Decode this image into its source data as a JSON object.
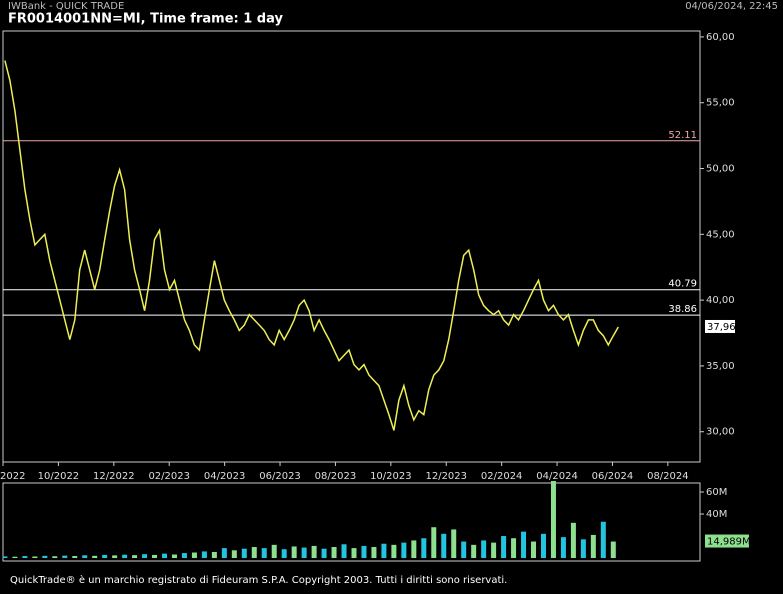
{
  "app_title": "IWBank - QUICK TRADE",
  "timestamp": "04/06/2024, 22:45",
  "footer": "QuickTrade® è un marchio registrato di Fideuram S.P.A. Copyright 2003. Tutti i diritti sono riservati.",
  "chart_data": [
    {
      "type": "line",
      "title": "FR0014001NN=MI, Time frame: 1 day",
      "color": "#eeee55",
      "x": [
        0.07,
        0.25,
        0.43,
        0.61,
        0.79,
        0.97,
        1.15,
        1.33,
        1.51,
        1.69,
        1.87,
        2.05,
        2.23,
        2.41,
        2.59,
        2.77,
        2.95,
        3.13,
        3.31,
        3.49,
        3.67,
        3.85,
        4.03,
        4.21,
        4.39,
        4.57,
        4.75,
        4.93,
        5.11,
        5.29,
        5.47,
        5.65,
        5.83,
        6.01,
        6.19,
        6.37,
        6.55,
        6.73,
        6.91,
        7.09,
        7.27,
        7.45,
        7.63,
        7.81,
        7.99,
        8.17,
        8.35,
        8.53,
        8.71,
        8.89,
        9.07,
        9.25,
        9.43,
        9.61,
        9.79,
        9.97,
        10.15,
        10.33,
        10.51,
        10.69,
        10.87,
        11.05,
        11.23,
        11.41,
        11.59,
        11.77,
        11.95,
        12.13,
        12.31,
        12.49,
        12.67,
        12.85,
        13.03,
        13.21,
        13.39,
        13.57,
        13.75,
        13.93,
        14.11,
        14.29,
        14.47,
        14.65,
        14.83,
        15.01,
        15.19,
        15.37,
        15.55,
        15.73,
        15.91,
        16.09,
        16.27,
        16.45,
        16.63,
        16.81,
        16.99,
        17.17,
        17.35,
        17.53,
        17.71,
        17.89,
        18.07,
        18.25,
        18.43,
        18.61,
        18.79,
        18.97,
        19.15,
        19.33,
        19.51,
        19.69,
        19.87,
        20.05,
        20.23,
        20.41,
        20.59,
        20.77,
        20.95,
        21.13,
        21.31,
        21.49,
        21.67,
        21.85,
        22.03,
        22.21
      ],
      "values": [
        58.2,
        56.7,
        54.4,
        51.4,
        48.4,
        46.1,
        44.2,
        44.6,
        45.0,
        43.0,
        41.5,
        40.0,
        38.5,
        37.0,
        38.5,
        42.3,
        43.8,
        42.3,
        40.8,
        42.3,
        44.6,
        46.8,
        48.7,
        49.9,
        48.4,
        44.6,
        42.3,
        40.8,
        39.2,
        41.5,
        44.6,
        45.3,
        42.3,
        40.8,
        41.5,
        40.0,
        38.5,
        37.7,
        36.6,
        36.2,
        38.5,
        40.8,
        43.0,
        41.5,
        40.0,
        39.2,
        38.5,
        37.7,
        38.1,
        38.9,
        38.5,
        38.1,
        37.7,
        37.0,
        36.6,
        37.7,
        37.0,
        37.7,
        38.5,
        39.6,
        40.0,
        39.2,
        37.7,
        38.5,
        37.7,
        37.0,
        36.2,
        35.4,
        35.8,
        36.2,
        35.1,
        34.7,
        35.1,
        34.3,
        33.9,
        33.5,
        32.4,
        31.3,
        30.1,
        32.4,
        33.5,
        32.0,
        30.9,
        31.6,
        31.3,
        33.2,
        34.3,
        34.7,
        35.4,
        37.0,
        39.2,
        41.5,
        43.4,
        43.8,
        42.3,
        40.4,
        39.6,
        39.2,
        38.9,
        39.2,
        38.5,
        38.1,
        38.9,
        38.5,
        39.2,
        40.0,
        40.8,
        41.5,
        40.0,
        39.2,
        39.6,
        38.9,
        38.5,
        38.9,
        37.7,
        36.6,
        37.7,
        38.5,
        38.5,
        37.7,
        37.3,
        36.6,
        37.3,
        37.96
      ],
      "xlim": [
        0,
        25.16
      ],
      "xticks": [
        {
          "value": 0,
          "label": "2022"
        },
        {
          "value": 2,
          "label": "10/2022"
        },
        {
          "value": 4,
          "label": "12/2022"
        },
        {
          "value": 6,
          "label": "02/2023"
        },
        {
          "value": 8,
          "label": "04/2023"
        },
        {
          "value": 10,
          "label": "06/2023"
        },
        {
          "value": 12,
          "label": "08/2023"
        },
        {
          "value": 14,
          "label": "10/2023"
        },
        {
          "value": 16,
          "label": "12/2023"
        },
        {
          "value": 18,
          "label": "02/2024"
        },
        {
          "value": 20,
          "label": "04/2024"
        },
        {
          "value": 22,
          "label": "06/2024"
        },
        {
          "value": 24,
          "label": "08/2024"
        }
      ],
      "ylim": [
        27.7,
        60.45
      ],
      "yticks": [
        {
          "value": 30,
          "label": "30,00"
        },
        {
          "value": 35,
          "label": "35,00"
        },
        {
          "value": 40,
          "label": "40,00"
        },
        {
          "value": 45,
          "label": "45,00"
        },
        {
          "value": 50,
          "label": "50,00"
        },
        {
          "value": 55,
          "label": "55,00"
        },
        {
          "value": 60,
          "label": "60,00"
        }
      ],
      "levels": [
        {
          "value": 52.11,
          "label": "52.11",
          "color": "#f0a8a8"
        },
        {
          "value": 40.79,
          "label": "40.79",
          "color": "#ffffff"
        },
        {
          "value": 38.86,
          "label": "38.86",
          "color": "#ffffff"
        }
      ],
      "last_value": {
        "value": 37.96,
        "label": "37,96"
      }
    },
    {
      "type": "bar",
      "x": [
        0.07,
        0.43,
        0.79,
        1.15,
        1.51,
        1.87,
        2.23,
        2.59,
        2.95,
        3.31,
        3.67,
        4.03,
        4.39,
        4.75,
        5.11,
        5.47,
        5.83,
        6.19,
        6.55,
        6.91,
        7.27,
        7.63,
        7.99,
        8.35,
        8.71,
        9.07,
        9.43,
        9.79,
        10.15,
        10.51,
        10.87,
        11.23,
        11.59,
        11.95,
        12.31,
        12.67,
        13.03,
        13.39,
        13.75,
        14.11,
        14.47,
        14.83,
        15.19,
        15.55,
        15.91,
        16.27,
        16.63,
        16.99,
        17.35,
        17.71,
        18.07,
        18.43,
        18.79,
        19.15,
        19.51,
        19.87,
        20.23,
        20.59,
        20.95,
        21.31,
        21.67,
        22.03
      ],
      "values": [
        1.5,
        1.2,
        1.8,
        1.4,
        2.0,
        1.6,
        2.2,
        1.8,
        2.5,
        2.0,
        2.8,
        2.4,
        3.0,
        2.6,
        3.5,
        2.8,
        4.0,
        3.2,
        4.5,
        5.0,
        6.0,
        5.5,
        9.0,
        7.0,
        8.5,
        10.0,
        9.0,
        12.0,
        8.0,
        10.5,
        9.5,
        11.0,
        8.5,
        10.0,
        12.5,
        9.0,
        11.0,
        10.0,
        13.0,
        12.0,
        14.0,
        16.0,
        18.0,
        28.0,
        22.0,
        26.0,
        15.0,
        12.0,
        16.0,
        14.0,
        20.0,
        18.0,
        24.0,
        15.0,
        22.0,
        70.0,
        19.0,
        32.0,
        17.0,
        21.0,
        33.0,
        15.0
      ],
      "colors": [
        "#22c4e0",
        "#8ee08e"
      ],
      "xlim": [
        0,
        25.16
      ],
      "ylim": [
        -2.7,
        68.2
      ],
      "yticks": [
        {
          "value": 40,
          "label": "40M"
        },
        {
          "value": 60,
          "label": "60M"
        }
      ],
      "last_value": {
        "value": 14.989,
        "label": "14,989M"
      }
    }
  ]
}
